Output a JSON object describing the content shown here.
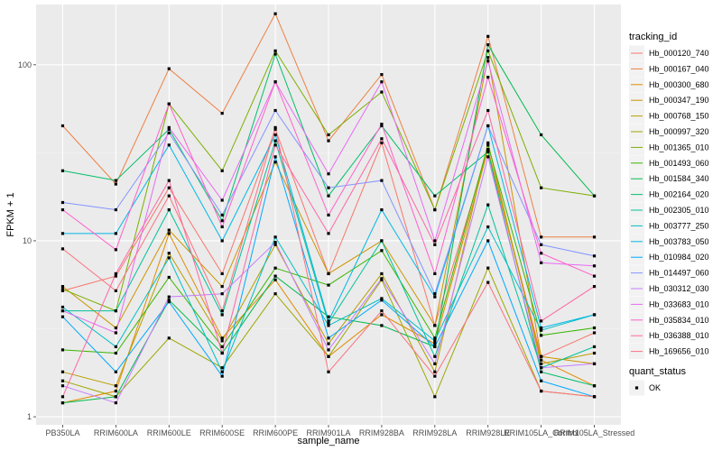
{
  "chart_data": {
    "type": "line",
    "xlabel": "sample_name",
    "ylabel": "FPKM + 1",
    "y_scale": "log10",
    "ylim": [
      0.9,
      220
    ],
    "grid": true,
    "legend_placement": "right",
    "y_ticks": [
      {
        "value": 1,
        "label": "1"
      },
      {
        "value": 10,
        "label": "10"
      },
      {
        "value": 100,
        "label": "100"
      }
    ],
    "categories": [
      "PB350LA",
      "RRIM600LA",
      "RRIM600LE",
      "RRIM600SE",
      "RRIM600PE",
      "RRIM901LA",
      "RRIM928BA",
      "RRIM928LA",
      "RRIM928LE",
      "RRIM105LA_Control",
      "RRIM105LA_Stressed"
    ],
    "legend_title": "tracking_id",
    "shape_legend": {
      "title": "quant_status",
      "items": [
        "OK"
      ]
    },
    "series": [
      {
        "name": "Hb_000120_740",
        "color": "#F8766D",
        "values": [
          5.2,
          6.3,
          20,
          6.5,
          43,
          6.5,
          36,
          3.3,
          33,
          2.2,
          3.0
        ]
      },
      {
        "name": "Hb_000167_040",
        "color": "#EE8043",
        "values": [
          45,
          21,
          95,
          53,
          195,
          37,
          88,
          15,
          145,
          10.5,
          10.5
        ]
      },
      {
        "name": "Hb_000300_680",
        "color": "#E08B00",
        "values": [
          1.2,
          1.4,
          11,
          2.8,
          6.0,
          2.2,
          3.8,
          2.6,
          33,
          2.1,
          1.5
        ]
      },
      {
        "name": "Hb_000347_190",
        "color": "#CC9600",
        "values": [
          5.5,
          3.2,
          11.5,
          5.5,
          28,
          6.5,
          10,
          3.3,
          110,
          2.2,
          2.0
        ]
      },
      {
        "name": "Hb_000768_150",
        "color": "#B79F00",
        "values": [
          1.8,
          1.5,
          8.5,
          2.7,
          9.5,
          2.6,
          6.5,
          1.8,
          36,
          2.0,
          2.3
        ]
      },
      {
        "name": "Hb_000997_320",
        "color": "#9DA700",
        "values": [
          1.6,
          1.3,
          2.8,
          1.9,
          5.0,
          2.2,
          6.0,
          1.3,
          7.0,
          1.4,
          1.3
        ]
      },
      {
        "name": "Hb_001365_010",
        "color": "#7CAE00",
        "values": [
          5.3,
          4.0,
          60,
          25,
          120,
          40,
          70,
          15,
          120,
          20,
          18
        ]
      },
      {
        "name": "Hb_001493_060",
        "color": "#39B600",
        "values": [
          2.4,
          2.3,
          6.2,
          2.5,
          7.0,
          5.6,
          8.8,
          2.8,
          35,
          2.9,
          3.2
        ]
      },
      {
        "name": "Hb_001584_340",
        "color": "#00BB4E",
        "values": [
          1.2,
          1.3,
          4.6,
          2.3,
          6.3,
          3.7,
          3.3,
          2.5,
          130,
          40,
          18
        ]
      },
      {
        "name": "Hb_002164_020",
        "color": "#00BE6C",
        "values": [
          25,
          22,
          43,
          13,
          115,
          18,
          45,
          18,
          32,
          1.8,
          1.5
        ]
      },
      {
        "name": "Hb_002305_010",
        "color": "#00C19A",
        "values": [
          4.0,
          4.0,
          15,
          3.8,
          37,
          3.4,
          10,
          2.2,
          16,
          1.9,
          2.5
        ]
      },
      {
        "name": "Hb_003777_250",
        "color": "#00BFC4",
        "values": [
          4.2,
          2.5,
          8.0,
          1.8,
          10.5,
          3.3,
          4.7,
          2.7,
          12,
          3.1,
          3.8
        ]
      },
      {
        "name": "Hb_003783_050",
        "color": "#00B8E7",
        "values": [
          11,
          11,
          35,
          10,
          40,
          3.5,
          15,
          4.8,
          45,
          3.2,
          3.8
        ]
      },
      {
        "name": "Hb_010984_020",
        "color": "#00A9FF",
        "values": [
          3.7,
          1.8,
          4.5,
          1.7,
          30,
          2.8,
          4.6,
          2.5,
          10,
          1.6,
          1.3
        ]
      },
      {
        "name": "Hb_014497_060",
        "color": "#8494FF",
        "values": [
          16.5,
          15,
          41,
          14,
          55,
          20,
          22,
          5.0,
          45,
          9.5,
          8.2
        ]
      },
      {
        "name": "Hb_030312_030",
        "color": "#C77CFF",
        "values": [
          1.5,
          1.2,
          4.8,
          5.0,
          9.8,
          2.4,
          6.1,
          2.0,
          30,
          1.9,
          2.0
        ]
      },
      {
        "name": "Hb_033683_010",
        "color": "#E76BF3",
        "values": [
          4.0,
          3.0,
          44,
          17,
          80,
          24,
          80,
          10,
          105,
          7.5,
          7.2
        ]
      },
      {
        "name": "Hb_035834_010",
        "color": "#FF61CC",
        "values": [
          15,
          8.9,
          60,
          12,
          80,
          14,
          46,
          6.5,
          85,
          8.5,
          6.3
        ]
      },
      {
        "name": "Hb_036388_010",
        "color": "#FF67A4",
        "values": [
          1.3,
          6.5,
          22,
          2.3,
          35,
          11,
          38,
          9.5,
          55,
          3.5,
          5.5
        ]
      },
      {
        "name": "Hb_169656_010",
        "color": "#FC717F",
        "values": [
          9.0,
          5.2,
          18,
          4.0,
          44,
          1.8,
          4.0,
          1.7,
          5.8,
          1.4,
          1.3
        ]
      }
    ]
  }
}
